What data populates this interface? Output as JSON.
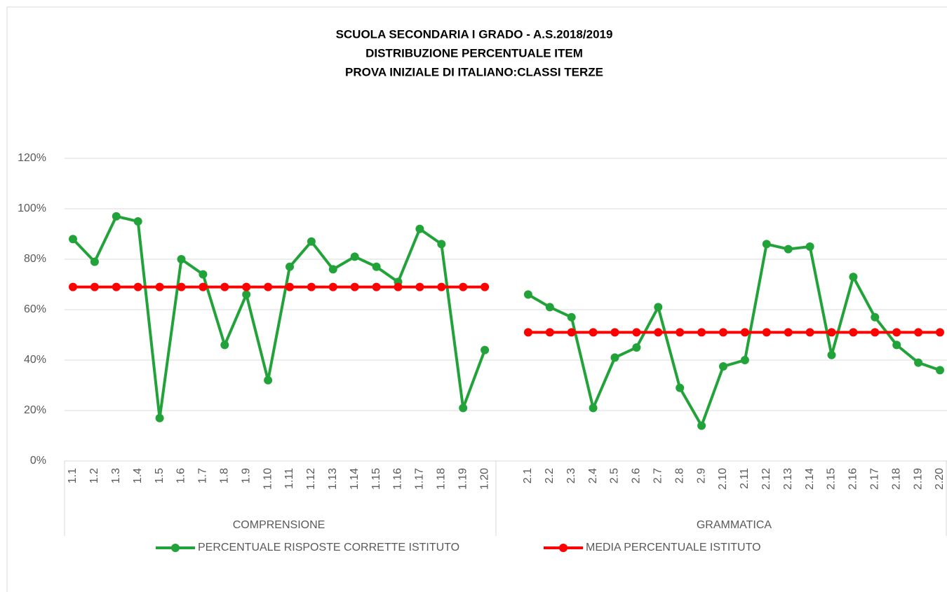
{
  "chart_data": {
    "type": "line",
    "title": [
      "SCUOLA SECONDARIA I GRADO - A.S.2018/2019",
      "DISTRIBUZIONE PERCENTUALE ITEM",
      "PROVA INIZIALE DI ITALIANO:CLASSI TERZE"
    ],
    "groups": [
      {
        "name": "COMPRENSIONE",
        "categories": [
          "1.1",
          "1.2",
          "1.3",
          "1.4",
          "1.5",
          "1.6",
          "1.7",
          "1.8",
          "1.9",
          "1.10",
          "1.11",
          "1.12",
          "1.13",
          "1.14",
          "1.15",
          "1.16",
          "1.17",
          "1.18",
          "1.19",
          "1.20"
        ]
      },
      {
        "name": "GRAMMATICA",
        "categories": [
          "2.1",
          "2.2",
          "2.3",
          "2.4",
          "2.5",
          "2.6",
          "2.7",
          "2.8",
          "2.9",
          "2.10",
          "2.11",
          "2.12",
          "2.13",
          "2.14",
          "2.15",
          "2.16",
          "2.17",
          "2.18",
          "2.19",
          "2.20"
        ]
      }
    ],
    "series": [
      {
        "name": "PERCENTUALE RISPOSTE CORRETTE ISTITUTO",
        "color": "#22a33a",
        "values": [
          88,
          79,
          97,
          95,
          17,
          80,
          74,
          46,
          66,
          32,
          77,
          87,
          76,
          81,
          77,
          71,
          92,
          86,
          21,
          44,
          66,
          61,
          57,
          21,
          41,
          45,
          61,
          29,
          14,
          37.5,
          40,
          86,
          84,
          85,
          42,
          73,
          57,
          46,
          39,
          36
        ]
      },
      {
        "name": "MEDIA PERCENTUALE  ISTITUTO",
        "color": "#ff0000",
        "values": [
          69,
          69,
          69,
          69,
          69,
          69,
          69,
          69,
          69,
          69,
          69,
          69,
          69,
          69,
          69,
          69,
          69,
          69,
          69,
          69,
          51,
          51,
          51,
          51,
          51,
          51,
          51,
          51,
          51,
          51,
          51,
          51,
          51,
          51,
          51,
          51,
          51,
          51,
          51,
          51
        ]
      }
    ],
    "ylim": [
      0,
      120
    ],
    "yticks": [
      {
        "value": 0,
        "label": "0%"
      },
      {
        "value": 20,
        "label": "20%"
      },
      {
        "value": 40,
        "label": "40%"
      },
      {
        "value": 60,
        "label": "60%"
      },
      {
        "value": 80,
        "label": "80%"
      },
      {
        "value": 100,
        "label": "100%"
      },
      {
        "value": 120,
        "label": "120%"
      }
    ],
    "grid": true,
    "legend": "bottom"
  }
}
